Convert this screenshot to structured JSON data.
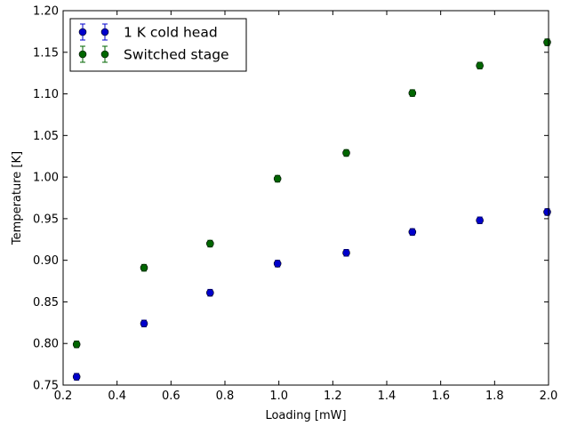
{
  "chart_data": {
    "type": "scatter",
    "xlabel": "Loading [mW]",
    "ylabel": "Temperature [K]",
    "xlim": [
      0.2,
      2.0
    ],
    "ylim": [
      0.75,
      1.2
    ],
    "xticks": [
      0.2,
      0.4,
      0.6,
      0.8,
      1.0,
      1.2,
      1.4,
      1.6,
      1.8,
      2.0
    ],
    "xtick_labels": [
      "0.2",
      "0.4",
      "0.6",
      "0.8",
      "1.0",
      "1.2",
      "1.4",
      "1.6",
      "1.8",
      "2.0"
    ],
    "yticks": [
      0.75,
      0.8,
      0.85,
      0.9,
      0.95,
      1.0,
      1.05,
      1.1,
      1.15,
      1.2
    ],
    "ytick_labels": [
      "0.75",
      "0.80",
      "0.85",
      "0.90",
      "0.95",
      "1.00",
      "1.05",
      "1.10",
      "1.15",
      "1.20"
    ],
    "grid": false,
    "legend_position": "top-left",
    "error_bars": true,
    "series": [
      {
        "name": "1 K cold head",
        "color": "#0000cc",
        "x": [
          0.25,
          0.5,
          0.745,
          0.995,
          1.25,
          1.495,
          1.745,
          1.995
        ],
        "y": [
          0.76,
          0.824,
          0.861,
          0.896,
          0.909,
          0.934,
          0.948,
          0.958
        ],
        "yerr": [
          0.004,
          0.004,
          0.004,
          0.004,
          0.004,
          0.004,
          0.004,
          0.004
        ]
      },
      {
        "name": "Switched stage",
        "color": "#006600",
        "x": [
          0.25,
          0.5,
          0.745,
          0.995,
          1.25,
          1.495,
          1.745,
          1.995
        ],
        "y": [
          0.799,
          0.891,
          0.92,
          0.998,
          1.029,
          1.101,
          1.134,
          1.162
        ],
        "yerr": [
          0.004,
          0.004,
          0.004,
          0.004,
          0.004,
          0.004,
          0.004,
          0.004
        ]
      }
    ]
  }
}
